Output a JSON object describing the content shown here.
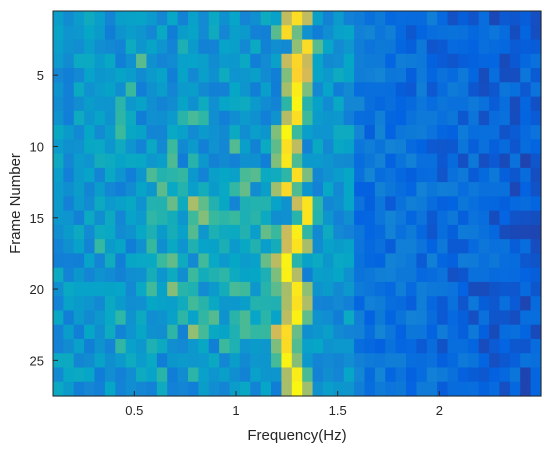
{
  "chart_data": {
    "type": "heatmap",
    "title": "",
    "xlabel": "Frequency(Hz)",
    "ylabel": "Frame Number",
    "xlim": [
      0.1,
      2.5
    ],
    "ylim": [
      0.5,
      27.5
    ],
    "y_reversed": true,
    "x_ticks": [
      0.5,
      1,
      1.5,
      2
    ],
    "x_tick_labels": [
      "0.5",
      "1",
      "1.5",
      "2"
    ],
    "y_ticks": [
      5,
      10,
      15,
      20,
      25
    ],
    "y_tick_labels": [
      "5",
      "10",
      "15",
      "20",
      "25"
    ],
    "grid": false,
    "colormap": "parula",
    "colormap_colors": [
      "#352a87",
      "#0363e1",
      "#1485d4",
      "#06a7c6",
      "#38b99e",
      "#92bf73",
      "#d9ba56",
      "#fcce2e",
      "#f9fb0e"
    ],
    "bins_x": 47,
    "bins_y": 27,
    "ridge_description": "Bright peak near 1.25-1.35 Hz in every frame; secondary moderate activity 0.6-1.2 Hz around frames 13-22; low intensity above 1.6 Hz"
  }
}
